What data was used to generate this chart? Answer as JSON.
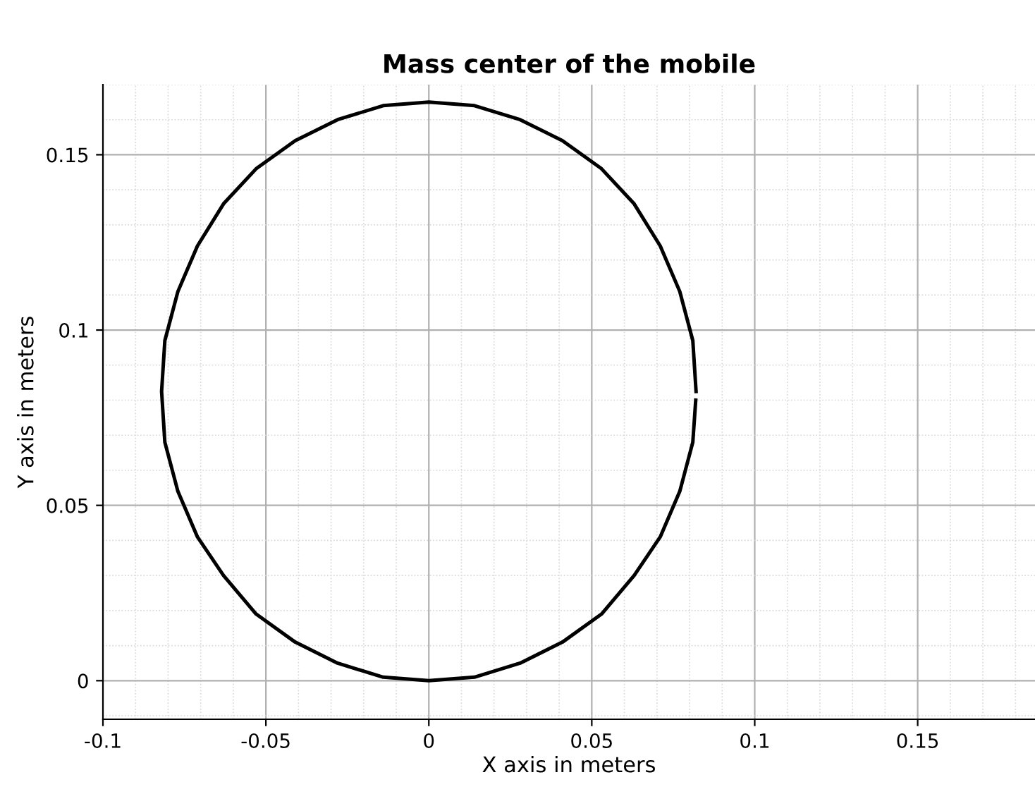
{
  "chart_data": {
    "type": "line",
    "title": "Mass center of the mobile",
    "xlabel": "X axis in meters",
    "ylabel": "Y axis in meters",
    "series": [
      {
        "color": "#000000",
        "x": [
          0.082,
          0.081,
          0.077,
          0.071,
          0.063,
          0.053,
          0.041,
          0.028,
          0.014,
          0,
          -0.014,
          -0.028,
          -0.041,
          -0.053,
          -0.063,
          -0.071,
          -0.077,
          -0.081,
          -0.082,
          -0.081,
          -0.077,
          -0.071,
          -0.063,
          -0.053,
          -0.041,
          -0.028,
          -0.014,
          0,
          0.014,
          0.028,
          0.041,
          0.053,
          0.063,
          0.071,
          0.077,
          0.081,
          0.0819
        ],
        "values": [
          0.0825,
          0.097,
          0.111,
          0.124,
          0.136,
          0.146,
          0.154,
          0.16,
          0.164,
          0.165,
          0.164,
          0.16,
          0.154,
          0.146,
          0.136,
          0.124,
          0.111,
          0.097,
          0.0825,
          0.068,
          0.054,
          0.041,
          0.03,
          0.019,
          0.011,
          0.005,
          0.001,
          0,
          0.001,
          0.005,
          0.011,
          0.019,
          0.03,
          0.041,
          0.054,
          0.068,
          0.08
        ]
      }
    ],
    "xlim": [
      -0.1,
      0.186
    ],
    "ylim": [
      -0.011,
      0.17
    ],
    "xticks": [
      -0.1,
      -0.05,
      0,
      0.05,
      0.1,
      0.15
    ],
    "yticks": [
      0,
      0.05,
      0.1,
      0.15
    ],
    "grid": true,
    "marker": "none",
    "line_style": "solid"
  }
}
